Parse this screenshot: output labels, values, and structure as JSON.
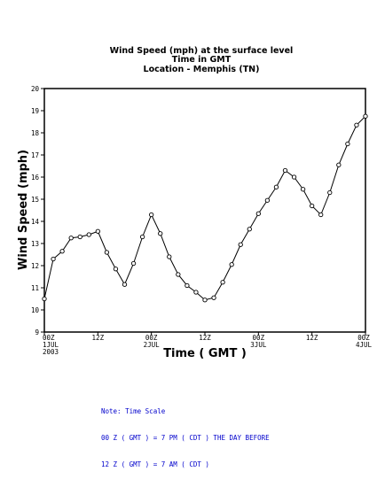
{
  "chart_data": {
    "type": "line",
    "title": [
      "Wind Speed (mph) at the surface level",
      "Time in GMT",
      "Location - Memphis (TN)"
    ],
    "xlabel": "Time ( GMT )",
    "ylabel": "Wind Speed (mph)",
    "ylim": [
      9,
      20
    ],
    "yticks": [
      9,
      10,
      11,
      12,
      13,
      14,
      15,
      16,
      17,
      18,
      19,
      20
    ],
    "xlim": [
      0,
      72
    ],
    "xticks": [
      {
        "x": 0,
        "lines": [
          "00Z",
          "1JUL",
          "2003"
        ]
      },
      {
        "x": 12,
        "lines": [
          "12Z"
        ]
      },
      {
        "x": 24,
        "lines": [
          "00Z",
          "2JUL"
        ]
      },
      {
        "x": 36,
        "lines": [
          "12Z"
        ]
      },
      {
        "x": 48,
        "lines": [
          "00Z",
          "3JUL"
        ]
      },
      {
        "x": 60,
        "lines": [
          "12Z"
        ]
      },
      {
        "x": 72,
        "lines": [
          "00Z",
          "4JUL"
        ]
      }
    ],
    "x_units": "hours from 00Z 1JUL 2003",
    "grid": false,
    "series": [
      {
        "color": "#000000",
        "marker": "open-circle",
        "x": [
          0,
          2,
          4,
          6,
          8,
          10,
          12,
          14,
          16,
          18,
          20,
          22,
          24,
          26,
          28,
          30,
          32,
          34,
          36,
          38,
          40,
          42,
          44,
          46,
          48,
          50,
          52,
          54,
          56,
          58,
          60,
          62,
          64,
          66,
          68,
          70,
          72
        ],
        "y": [
          10.5,
          12.3,
          12.65,
          13.25,
          13.3,
          13.4,
          13.55,
          12.6,
          11.85,
          11.15,
          12.1,
          13.3,
          14.3,
          13.45,
          12.4,
          11.6,
          11.1,
          10.8,
          10.45,
          10.55,
          11.25,
          12.05,
          12.95,
          13.65,
          14.35,
          14.95,
          15.55,
          16.3,
          16.0,
          15.45,
          14.7,
          14.3,
          15.3,
          16.55,
          17.5,
          18.35,
          18.75
        ]
      }
    ]
  },
  "note": {
    "lines": [
      "Note: Time Scale",
      "00 Z ( GMT ) = 7 PM ( CDT ) THE DAY BEFORE",
      "12 Z ( GMT ) = 7 AM ( CDT )"
    ],
    "color": "#0000cc"
  }
}
